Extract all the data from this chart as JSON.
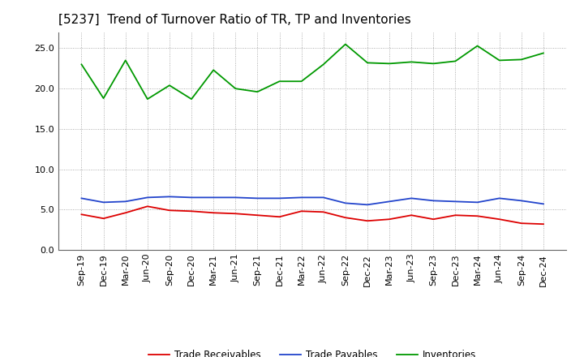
{
  "title": "[5237]  Trend of Turnover Ratio of TR, TP and Inventories",
  "x_labels": [
    "Sep-19",
    "Dec-19",
    "Mar-20",
    "Jun-20",
    "Sep-20",
    "Dec-20",
    "Mar-21",
    "Jun-21",
    "Sep-21",
    "Dec-21",
    "Mar-22",
    "Jun-22",
    "Sep-22",
    "Dec-22",
    "Mar-23",
    "Jun-23",
    "Sep-23",
    "Dec-23",
    "Mar-24",
    "Jun-24",
    "Sep-24",
    "Dec-24"
  ],
  "trade_receivables": [
    4.4,
    3.9,
    4.6,
    5.4,
    4.9,
    4.8,
    4.6,
    4.5,
    4.3,
    4.1,
    4.8,
    4.7,
    4.0,
    3.6,
    3.8,
    4.3,
    3.8,
    4.3,
    4.2,
    3.8,
    3.3,
    3.2
  ],
  "trade_payables": [
    6.4,
    5.9,
    6.0,
    6.5,
    6.6,
    6.5,
    6.5,
    6.5,
    6.4,
    6.4,
    6.5,
    6.5,
    5.8,
    5.6,
    6.0,
    6.4,
    6.1,
    6.0,
    5.9,
    6.4,
    6.1,
    5.7
  ],
  "inventories": [
    23.0,
    18.8,
    23.5,
    18.7,
    20.4,
    18.7,
    22.3,
    20.0,
    19.6,
    20.9,
    20.9,
    23.0,
    25.5,
    23.2,
    23.1,
    23.3,
    23.1,
    23.4,
    25.3,
    23.5,
    23.6,
    24.4
  ],
  "ylim": [
    0,
    27
  ],
  "yticks": [
    0.0,
    5.0,
    10.0,
    15.0,
    20.0,
    25.0
  ],
  "color_tr": "#dd0000",
  "color_tp": "#2244cc",
  "color_inv": "#009900",
  "legend_labels": [
    "Trade Receivables",
    "Trade Payables",
    "Inventories"
  ],
  "bg_color": "#ffffff",
  "plot_bg_color": "#ffffff",
  "grid_color": "#999999",
  "title_fontsize": 11,
  "tick_fontsize": 8,
  "legend_fontsize": 8.5
}
